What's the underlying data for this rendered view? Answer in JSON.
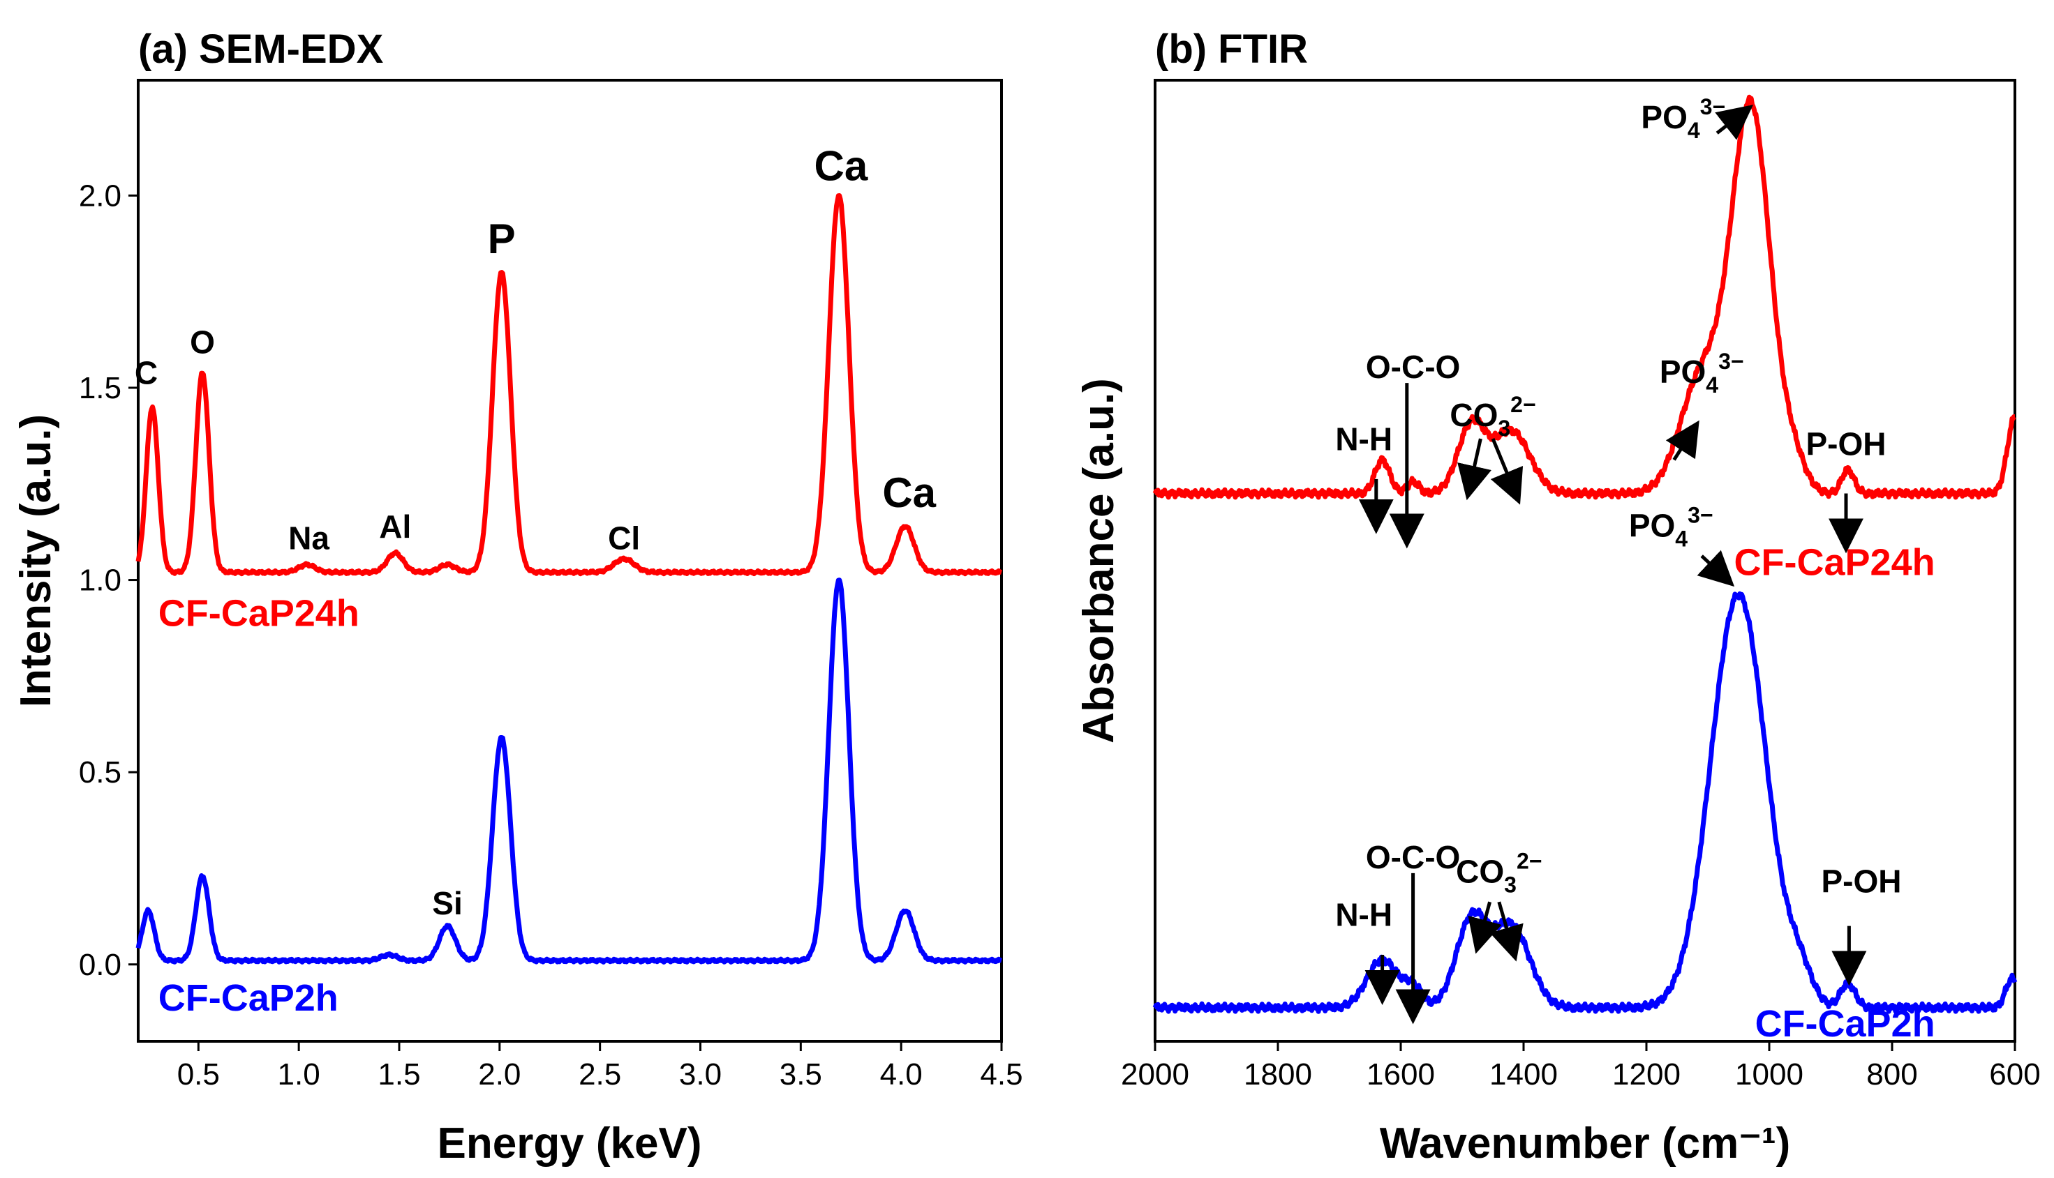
{
  "chart_data": [
    {
      "panel": "a",
      "type": "line",
      "title": "(a) SEM-EDX",
      "xlabel": "Energy (keV)",
      "ylabel": "Intensity (a.u.)",
      "xlim": [
        0.2,
        4.5
      ],
      "ylim": [
        -0.2,
        2.3
      ],
      "xticks": [
        "0.5",
        "1.0",
        "1.5",
        "2.0",
        "2.5",
        "3.0",
        "3.5",
        "4.0",
        "4.5"
      ],
      "xtick_values": [
        0.5,
        1.0,
        1.5,
        2.0,
        2.5,
        3.0,
        3.5,
        4.0,
        4.5
      ],
      "yticks": [
        "0.0",
        "0.5",
        "1.0",
        "1.5",
        "2.0"
      ],
      "ytick_values": [
        0.0,
        0.5,
        1.0,
        1.5,
        2.0
      ],
      "series": [
        {
          "name": "CF-CaP24h",
          "color": "#ff0000",
          "baseline": 1.02,
          "peaks": [
            {
              "x": 0.27,
              "h": 0.43,
              "w": 0.03
            },
            {
              "x": 0.52,
              "h": 0.52,
              "w": 0.033
            },
            {
              "x": 1.04,
              "h": 0.02,
              "w": 0.04
            },
            {
              "x": 1.48,
              "h": 0.05,
              "w": 0.04
            },
            {
              "x": 1.74,
              "h": 0.02,
              "w": 0.04
            },
            {
              "x": 2.01,
              "h": 0.78,
              "w": 0.045
            },
            {
              "x": 2.62,
              "h": 0.035,
              "w": 0.05
            },
            {
              "x": 3.69,
              "h": 0.98,
              "w": 0.05
            },
            {
              "x": 4.02,
              "h": 0.12,
              "w": 0.045
            }
          ]
        },
        {
          "name": "CF-CaP2h",
          "color": "#0000ff",
          "baseline": 0.01,
          "peaks": [
            {
              "x": 0.25,
              "h": 0.13,
              "w": 0.03
            },
            {
              "x": 0.52,
              "h": 0.22,
              "w": 0.033
            },
            {
              "x": 1.45,
              "h": 0.015,
              "w": 0.04
            },
            {
              "x": 1.74,
              "h": 0.09,
              "w": 0.04
            },
            {
              "x": 2.01,
              "h": 0.58,
              "w": 0.045
            },
            {
              "x": 3.69,
              "h": 0.99,
              "w": 0.05
            },
            {
              "x": 4.02,
              "h": 0.13,
              "w": 0.045
            }
          ]
        }
      ],
      "annotations": [
        {
          "text": "C",
          "x": 0.24,
          "y": 1.51,
          "color": "#000000"
        },
        {
          "text": "O",
          "x": 0.52,
          "y": 1.59,
          "color": "#000000"
        },
        {
          "text": "Na",
          "x": 1.05,
          "y": 1.08,
          "color": "#000000"
        },
        {
          "text": "Al",
          "x": 1.48,
          "y": 1.11,
          "color": "#000000"
        },
        {
          "text": "P",
          "x": 2.01,
          "y": 1.85,
          "color": "#00a651"
        },
        {
          "text": "Cl",
          "x": 2.62,
          "y": 1.08,
          "color": "#000000"
        },
        {
          "text": "Ca",
          "x": 3.7,
          "y": 2.04,
          "color": "#00a651"
        },
        {
          "text": "Ca",
          "x": 4.04,
          "y": 1.19,
          "color": "#00a651"
        },
        {
          "text": "Si",
          "x": 1.74,
          "y": 0.13,
          "color": "#000000"
        }
      ],
      "series_labels": [
        {
          "text": "CF-CaP24h",
          "x": 0.3,
          "y": 0.88,
          "color": "#ff0000"
        },
        {
          "text": "CF-CaP2h",
          "x": 0.3,
          "y": -0.12,
          "color": "#0000ff"
        }
      ]
    },
    {
      "panel": "b",
      "type": "line",
      "title": "(b) FTIR",
      "xlabel": "Wavenumber (cm⁻¹)",
      "ylabel": "Absorbance (a.u.)",
      "xlim": [
        2000,
        600
      ],
      "ylim": [
        0,
        1.0
      ],
      "xticks": [
        "2000",
        "1800",
        "1600",
        "1400",
        "1200",
        "1000",
        "800",
        "600"
      ],
      "xtick_values": [
        2000,
        1800,
        1600,
        1400,
        1200,
        1000,
        800,
        600
      ],
      "series": [
        {
          "name": "CF-CaP24h",
          "color": "#ff0000",
          "baseline": 0.57,
          "peaks": [
            {
              "x": 1630,
              "h": 0.035,
              "w": 12
            },
            {
              "x": 1580,
              "h": 0.012,
              "w": 10
            },
            {
              "x": 1485,
              "h": 0.07,
              "w": 22
            },
            {
              "x": 1420,
              "h": 0.065,
              "w": 30
            },
            {
              "x": 1030,
              "h": 0.4,
              "w": 32
            },
            {
              "x": 1110,
              "h": 0.12,
              "w": 35
            },
            {
              "x": 960,
              "h": 0.03,
              "w": 20
            },
            {
              "x": 872,
              "h": 0.025,
              "w": 10
            },
            {
              "x": 600,
              "h": 0.08,
              "w": 12
            }
          ]
        },
        {
          "name": "CF-CaP2h",
          "color": "#0000ff",
          "baseline": 0.035,
          "peaks": [
            {
              "x": 1630,
              "h": 0.05,
              "w": 25
            },
            {
              "x": 1580,
              "h": 0.02,
              "w": 15
            },
            {
              "x": 1485,
              "h": 0.09,
              "w": 25
            },
            {
              "x": 1420,
              "h": 0.085,
              "w": 30
            },
            {
              "x": 1050,
              "h": 0.43,
              "w": 45
            },
            {
              "x": 950,
              "h": 0.03,
              "w": 20
            },
            {
              "x": 872,
              "h": 0.025,
              "w": 12
            },
            {
              "x": 605,
              "h": 0.03,
              "w": 10
            }
          ]
        }
      ],
      "annotations": [
        {
          "text": "N-H",
          "x": 1660,
          "y": 0.615
        },
        {
          "text": "O-C-O",
          "x": 1580,
          "y": 0.69
        },
        {
          "text": "CO",
          "sub": "3",
          "sup": "2−",
          "x": 1450,
          "y": 0.64
        },
        {
          "text": "PO",
          "sub": "4",
          "sup": "3−",
          "x": 1110,
          "y": 0.685
        },
        {
          "text": "PO",
          "sub": "4",
          "sup": "3−",
          "x": 1140,
          "y": 0.95
        },
        {
          "text": "P-OH",
          "x": 875,
          "y": 0.61
        },
        {
          "text": "N-H",
          "x": 1660,
          "y": 0.12
        },
        {
          "text": "O-C-O",
          "x": 1580,
          "y": 0.18
        },
        {
          "text": "CO",
          "sub": "3",
          "sup": "2−",
          "x": 1440,
          "y": 0.165
        },
        {
          "text": "PO",
          "sub": "4",
          "sup": "3−",
          "x": 1160,
          "y": 0.525
        },
        {
          "text": "P-OH",
          "x": 850,
          "y": 0.155
        }
      ],
      "arrows": [
        {
          "x1": 1640,
          "y1": 0.585,
          "x2": 1640,
          "y2": 0.535
        },
        {
          "x1": 1590,
          "y1": 0.685,
          "x2": 1590,
          "y2": 0.52
        },
        {
          "x1": 1470,
          "y1": 0.627,
          "x2": 1490,
          "y2": 0.57
        },
        {
          "x1": 1450,
          "y1": 0.627,
          "x2": 1410,
          "y2": 0.565
        },
        {
          "x1": 1155,
          "y1": 0.605,
          "x2": 1120,
          "y2": 0.64
        },
        {
          "x1": 1085,
          "y1": 0.945,
          "x2": 1035,
          "y2": 0.97
        },
        {
          "x1": 875,
          "y1": 0.57,
          "x2": 875,
          "y2": 0.515
        },
        {
          "x1": 1630,
          "y1": 0.09,
          "x2": 1630,
          "y2": 0.045
        },
        {
          "x1": 1580,
          "y1": 0.175,
          "x2": 1580,
          "y2": 0.025
        },
        {
          "x1": 1455,
          "y1": 0.145,
          "x2": 1475,
          "y2": 0.098
        },
        {
          "x1": 1440,
          "y1": 0.145,
          "x2": 1415,
          "y2": 0.09
        },
        {
          "x1": 1110,
          "y1": 0.505,
          "x2": 1065,
          "y2": 0.478
        },
        {
          "x1": 870,
          "y1": 0.12,
          "x2": 870,
          "y2": 0.065
        }
      ],
      "series_labels": [
        {
          "text": "CF-CaP24h",
          "x": 730,
          "y": 0.485,
          "color": "#ff0000"
        },
        {
          "text": "CF-CaP2h",
          "x": 730,
          "y": 0.005,
          "color": "#0000ff"
        }
      ]
    }
  ]
}
